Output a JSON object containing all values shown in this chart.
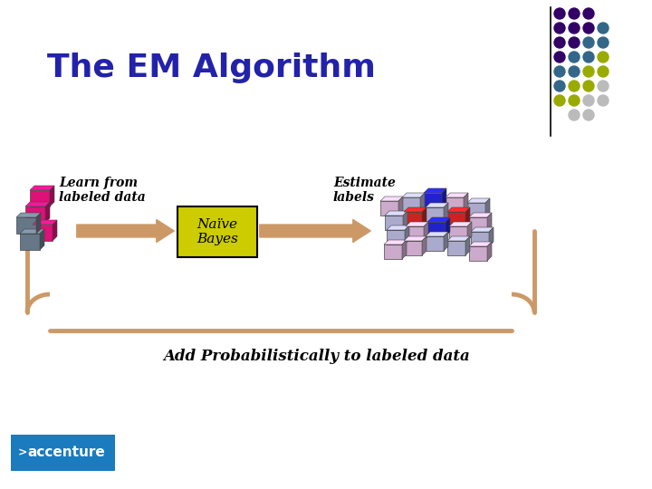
{
  "title": "The EM Algorithm",
  "title_color": "#2222AA",
  "title_fontsize": 26,
  "bg_color": "#FFFFFF",
  "learn_label": "Learn from\nlabeled data",
  "estimate_label": "Estimate\nlabels",
  "naive_bayes_label": "Naïve\nBayes",
  "bottom_label": "Add Probabilistically to labeled data",
  "accenture_color": "#1a7bbf",
  "arrow_color": "#CC9966",
  "naive_bayes_bg": "#CCCC00",
  "loop_color": "#CC9966",
  "dot_grid": [
    [
      "#330066",
      "#330066",
      "#330066",
      null
    ],
    [
      "#330066",
      "#330066",
      "#330066",
      "#336688"
    ],
    [
      "#330066",
      "#330066",
      "#336688",
      "#336688"
    ],
    [
      "#330066",
      "#336688",
      "#336688",
      "#99AA00"
    ],
    [
      "#336688",
      "#336688",
      "#99AA00",
      "#99AA00"
    ],
    [
      "#336688",
      "#99AA00",
      "#99AA00",
      "#BBBBBB"
    ],
    [
      "#99AA00",
      "#99AA00",
      "#BBBBBB",
      "#BBBBBB"
    ],
    [
      null,
      "#BBBBBB",
      "#BBBBBB",
      null
    ]
  ],
  "left_blocks": [
    [
      28,
      228,
      22,
      18,
      "#DD1177"
    ],
    [
      33,
      210,
      22,
      18,
      "#DD1177"
    ],
    [
      36,
      248,
      22,
      18,
      "#DD1177"
    ],
    [
      22,
      258,
      22,
      18,
      "#667788"
    ],
    [
      18,
      240,
      22,
      18,
      "#667788"
    ]
  ],
  "right_blocks": [
    [
      420,
      222,
      20,
      16,
      "#CCAACC"
    ],
    [
      425,
      238,
      20,
      16,
      "#AAAACC"
    ],
    [
      427,
      254,
      20,
      16,
      "#AAAACC"
    ],
    [
      424,
      270,
      20,
      16,
      "#CCAACC"
    ],
    [
      444,
      218,
      20,
      16,
      "#AAAACC"
    ],
    [
      446,
      234,
      20,
      16,
      "#CC2222"
    ],
    [
      448,
      250,
      20,
      16,
      "#CCAACC"
    ],
    [
      446,
      266,
      20,
      16,
      "#CCAACC"
    ],
    [
      468,
      213,
      20,
      16,
      "#2222CC"
    ],
    [
      470,
      229,
      20,
      16,
      "#AAAACC"
    ],
    [
      472,
      245,
      20,
      16,
      "#2222CC"
    ],
    [
      470,
      261,
      20,
      16,
      "#AAAACC"
    ],
    [
      492,
      218,
      20,
      16,
      "#CCAACC"
    ],
    [
      494,
      234,
      20,
      16,
      "#CC2222"
    ],
    [
      496,
      250,
      20,
      16,
      "#CCAACC"
    ],
    [
      494,
      266,
      20,
      16,
      "#AAAACC"
    ],
    [
      516,
      224,
      20,
      16,
      "#AAAACC"
    ],
    [
      518,
      240,
      20,
      16,
      "#CCAACC"
    ],
    [
      520,
      256,
      20,
      16,
      "#AAAACC"
    ],
    [
      518,
      272,
      20,
      16,
      "#CCAACC"
    ]
  ]
}
